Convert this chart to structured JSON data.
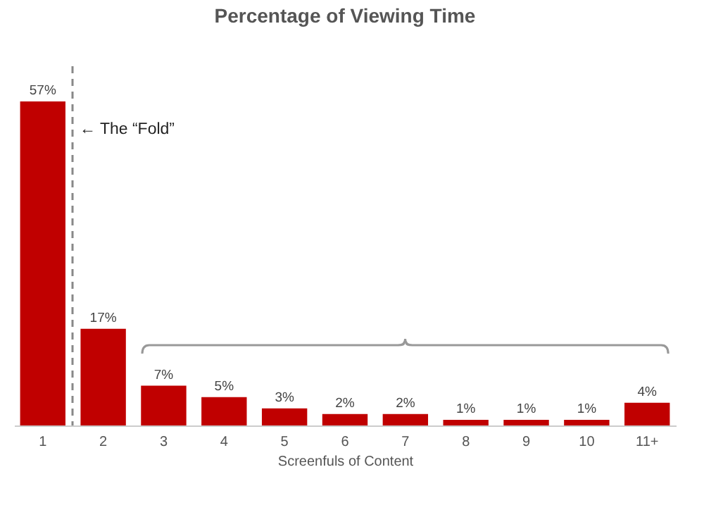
{
  "chart_data": {
    "type": "bar",
    "title": "Percentage of Viewing Time",
    "xlabel": "Screenfuls of Content",
    "categories": [
      "1",
      "2",
      "3",
      "4",
      "5",
      "6",
      "7",
      "8",
      "9",
      "10",
      "11+"
    ],
    "values": [
      57,
      17,
      7,
      5,
      3,
      2,
      2,
      1,
      1,
      1,
      4
    ],
    "value_labels": [
      "57%",
      "17%",
      "7%",
      "5%",
      "3%",
      "2%",
      "2%",
      "1%",
      "1%",
      "1%",
      "4%"
    ],
    "color": "#c00000",
    "annotations": [
      "← The “Fold”"
    ]
  }
}
